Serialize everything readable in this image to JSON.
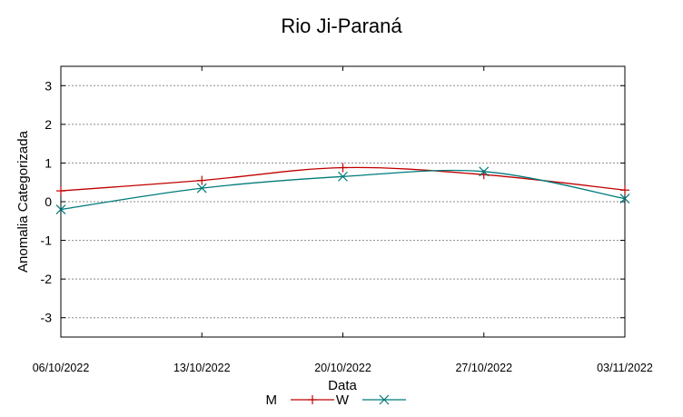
{
  "chart_data": {
    "type": "line",
    "title": "Rio Ji-Paraná",
    "xlabel": "Data",
    "ylabel": "Anomalia Categorizada",
    "categories": [
      "06/10/2022",
      "13/10/2022",
      "20/10/2022",
      "27/10/2022",
      "03/11/2022"
    ],
    "yticks": [
      "3",
      "2",
      "1",
      "0",
      "-1",
      "-2",
      "-3"
    ],
    "ylim": [
      -3.5,
      3.5
    ],
    "grid": true,
    "legend_position": "bottom",
    "series": [
      {
        "name": "M",
        "color": "#c00000",
        "marker": "plus",
        "values": [
          0.28,
          0.55,
          0.88,
          0.7,
          0.3
        ]
      },
      {
        "name": "W",
        "color": "#007a7a",
        "marker": "cross",
        "values": [
          -0.2,
          0.35,
          0.65,
          0.78,
          0.08
        ]
      }
    ]
  }
}
